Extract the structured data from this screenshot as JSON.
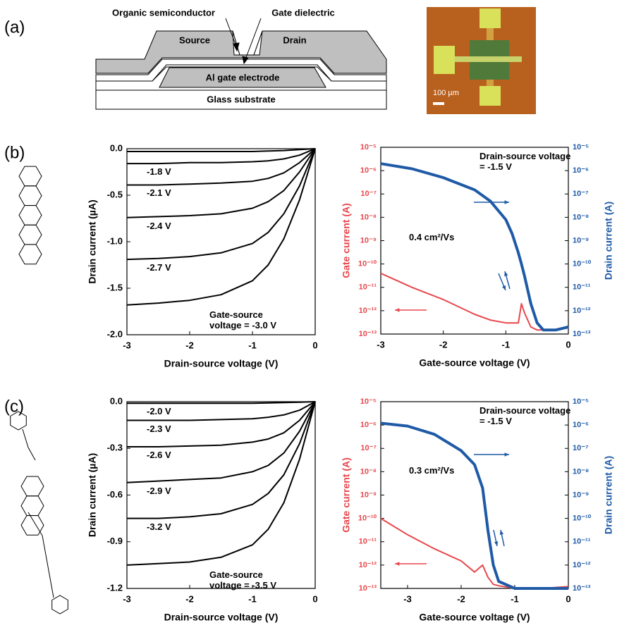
{
  "panel_labels": [
    "(a)",
    "(b)",
    "(c)"
  ],
  "diagram": {
    "organic_semiconductor": "Organic semiconductor",
    "gate_dielectric": "Gate dielectric",
    "source": "Source",
    "drain": "Drain",
    "gate_electrode": "Al gate electrode",
    "substrate": "Glass substrate",
    "scale_bar": "100 µm"
  },
  "chart_data": [
    {
      "type": "line",
      "x_label": "Drain-source voltage (V)",
      "y_label": "Drain current (µA)",
      "xlim": [
        -3,
        0
      ],
      "xticks": [
        -3,
        -2,
        -1,
        0
      ],
      "ylim": [
        -2,
        0
      ],
      "yticks": [
        {
          "value": 0,
          "label": "0.0"
        },
        -0.5,
        {
          "value": -1,
          "label": "-1.0"
        },
        -1.5,
        {
          "value": -2,
          "label": "-2.0"
        }
      ],
      "x": [
        -3,
        -2.5,
        -2,
        -1.5,
        -1,
        -0.75,
        -0.5,
        -0.25,
        0
      ],
      "series": [
        {
          "color": "#000000",
          "values": [
            -0.03,
            -0.03,
            -0.03,
            -0.03,
            -0.03,
            -0.025,
            -0.02,
            -0.01,
            0
          ]
        },
        {
          "name": "-1.8 V",
          "color": "#000000",
          "values": [
            -0.16,
            -0.16,
            -0.15,
            -0.15,
            -0.14,
            -0.13,
            -0.11,
            -0.07,
            0
          ]
        },
        {
          "name": "-2.1 V",
          "color": "#000000",
          "values": [
            -0.39,
            -0.39,
            -0.38,
            -0.37,
            -0.35,
            -0.32,
            -0.26,
            -0.15,
            0
          ]
        },
        {
          "name": "-2.4 V",
          "color": "#000000",
          "values": [
            -0.74,
            -0.73,
            -0.72,
            -0.7,
            -0.64,
            -0.57,
            -0.45,
            -0.25,
            0
          ]
        },
        {
          "name": "-2.7 V",
          "color": "#000000",
          "values": [
            -1.19,
            -1.18,
            -1.16,
            -1.12,
            -1.02,
            -0.9,
            -0.7,
            -0.4,
            0
          ]
        },
        {
          "name": "Gate-source voltage = -3.0 V",
          "color": "#000000",
          "values": [
            -1.68,
            -1.66,
            -1.63,
            -1.57,
            -1.42,
            -1.25,
            -0.97,
            -0.55,
            0
          ]
        }
      ]
    },
    {
      "type": "line",
      "y_scale": "log",
      "x_label": "Gate-source voltage (V)",
      "y_label": "Gate current (A)",
      "y2_label": "Drain current (A)",
      "annotations": [
        "Drain-source voltage = -1.5 V",
        "0.4 cm²/Vs"
      ],
      "xlim": [
        -3,
        0
      ],
      "xticks": [
        -3,
        -2,
        -1,
        0
      ],
      "ylim": [
        1e-13,
        1e-05
      ],
      "yticks": [
        {
          "value": 1e-05,
          "label": "10⁻⁵"
        },
        {
          "value": 1e-06,
          "label": "10⁻⁶"
        },
        {
          "value": 1e-07,
          "label": "10⁻⁷"
        },
        {
          "value": 1e-08,
          "label": "10⁻⁸"
        },
        {
          "value": 1e-09,
          "label": "10⁻⁹"
        },
        {
          "value": 1e-10,
          "label": "10⁻¹⁰"
        },
        {
          "value": 1e-11,
          "label": "10⁻¹¹"
        },
        {
          "value": 1e-12,
          "label": "10⁻¹²"
        },
        {
          "value": 1e-13,
          "label": "10⁻¹³"
        }
      ],
      "y2lim": [
        1e-13,
        1e-05
      ],
      "y2ticks": [
        {
          "value": 1e-05,
          "label": "10⁻⁵"
        },
        {
          "value": 1e-06,
          "label": "10⁻⁶"
        },
        {
          "value": 1e-07,
          "label": "10⁻⁷"
        },
        {
          "value": 1e-08,
          "label": "10⁻⁸"
        },
        {
          "value": 1e-09,
          "label": "10⁻⁹"
        },
        {
          "value": 1e-10,
          "label": "10⁻¹⁰"
        },
        {
          "value": 1e-11,
          "label": "10⁻¹¹"
        },
        {
          "value": 1e-12,
          "label": "10⁻¹²"
        },
        {
          "value": 1e-13,
          "label": "10⁻¹³"
        }
      ],
      "x": [
        -3,
        -2.5,
        -2,
        -1.5,
        -1.25,
        -1,
        -0.9,
        -0.8,
        -0.75,
        -0.7,
        -0.6,
        -0.5,
        -0.4,
        -0.2,
        0
      ],
      "series": [
        {
          "color": "#e8474c",
          "values": [
            4e-11,
            1e-11,
            3e-12,
            7e-13,
            4e-13,
            3e-13,
            3e-13,
            3e-13,
            2e-12,
            8e-13,
            2e-13,
            1.5e-13,
            1.5e-13,
            1.5e-13,
            2e-13
          ]
        },
        {
          "color": "#1f5aa6",
          "axis": "y2",
          "values": [
            2e-06,
            1.2e-06,
            5e-07,
            1.5e-07,
            5e-08,
            8e-09,
            2e-09,
            3e-10,
            1e-10,
            3e-11,
            2e-12,
            3e-13,
            1.5e-13,
            1.5e-13,
            2e-13
          ]
        }
      ]
    },
    {
      "type": "line",
      "x_label": "Drain-source voltage (V)",
      "y_label": "Drain current (µA)",
      "xlim": [
        -3,
        0
      ],
      "xticks": [
        -3,
        -2,
        -1,
        0
      ],
      "ylim": [
        -1.2,
        0
      ],
      "yticks": [
        {
          "value": 0,
          "label": "0.0"
        },
        -0.3,
        -0.6,
        -0.9,
        -1.2
      ],
      "x": [
        -3,
        -2.5,
        -2,
        -1.5,
        -1,
        -0.75,
        -0.5,
        -0.25,
        0
      ],
      "series": [
        {
          "name": "-2.0 V",
          "color": "#000000",
          "values": [
            -0.01,
            -0.01,
            -0.01,
            -0.01,
            -0.01,
            -0.008,
            -0.006,
            -0.003,
            0
          ]
        },
        {
          "name": "-2.3 V",
          "color": "#000000",
          "values": [
            -0.12,
            -0.12,
            -0.12,
            -0.115,
            -0.11,
            -0.1,
            -0.085,
            -0.055,
            0
          ]
        },
        {
          "name": "-2.6 V",
          "color": "#000000",
          "values": [
            -0.29,
            -0.29,
            -0.285,
            -0.28,
            -0.26,
            -0.24,
            -0.2,
            -0.12,
            0
          ]
        },
        {
          "name": "-2.9 V",
          "color": "#000000",
          "values": [
            -0.52,
            -0.51,
            -0.5,
            -0.49,
            -0.45,
            -0.41,
            -0.33,
            -0.19,
            0
          ]
        },
        {
          "name": "-3.2 V",
          "color": "#000000",
          "values": [
            -0.75,
            -0.75,
            -0.74,
            -0.72,
            -0.66,
            -0.59,
            -0.47,
            -0.27,
            0
          ]
        },
        {
          "name": "Gate-source voltage = -3.5 V",
          "color": "#000000",
          "values": [
            -1.05,
            -1.04,
            -1.03,
            -1.0,
            -0.92,
            -0.82,
            -0.65,
            -0.37,
            0
          ]
        }
      ]
    },
    {
      "type": "line",
      "y_scale": "log",
      "x_label": "Gate-source voltage (V)",
      "y_label": "Gate current (A)",
      "y2_label": "Drain current (A)",
      "annotations": [
        "Drain-source voltage = -1.5 V",
        "0.3 cm²/Vs"
      ],
      "xlim": [
        -3.5,
        0
      ],
      "xticks": [
        -3,
        -2,
        -1,
        0
      ],
      "ylim": [
        1e-13,
        1e-05
      ],
      "yticks": [
        {
          "value": 1e-05,
          "label": "10⁻⁵"
        },
        {
          "value": 1e-06,
          "label": "10⁻⁶"
        },
        {
          "value": 1e-07,
          "label": "10⁻⁷"
        },
        {
          "value": 1e-08,
          "label": "10⁻⁸"
        },
        {
          "value": 1e-09,
          "label": "10⁻⁹"
        },
        {
          "value": 1e-10,
          "label": "10⁻¹⁰"
        },
        {
          "value": 1e-11,
          "label": "10⁻¹¹"
        },
        {
          "value": 1e-12,
          "label": "10⁻¹²"
        },
        {
          "value": 1e-13,
          "label": "10⁻¹³"
        }
      ],
      "y2lim": [
        1e-13,
        1e-05
      ],
      "y2ticks": [
        {
          "value": 1e-05,
          "label": "10⁻⁵"
        },
        {
          "value": 1e-06,
          "label": "10⁻⁶"
        },
        {
          "value": 1e-07,
          "label": "10⁻⁷"
        },
        {
          "value": 1e-08,
          "label": "10⁻⁸"
        },
        {
          "value": 1e-09,
          "label": "10⁻⁹"
        },
        {
          "value": 1e-10,
          "label": "10⁻¹⁰"
        },
        {
          "value": 1e-11,
          "label": "10⁻¹¹"
        },
        {
          "value": 1e-12,
          "label": "10⁻¹²"
        },
        {
          "value": 1e-13,
          "label": "10⁻¹³"
        }
      ],
      "x": [
        -3.5,
        -3,
        -2.5,
        -2,
        -1.75,
        -1.6,
        -1.5,
        -1.4,
        -1.3,
        -1,
        -0.5,
        0
      ],
      "series": [
        {
          "color": "#e8474c",
          "values": [
            1e-10,
            2e-11,
            5e-12,
            1.5e-12,
            5e-13,
            1e-12,
            3e-13,
            1.5e-13,
            1.3e-13,
            1e-13,
            1e-13,
            1.2e-13
          ]
        },
        {
          "color": "#1f5aa6",
          "axis": "y2",
          "values": [
            1.2e-06,
            9e-07,
            4e-07,
            8e-08,
            2e-08,
            2e-09,
            3e-11,
            1e-12,
            2e-13,
            1e-13,
            1e-13,
            1e-13
          ]
        }
      ]
    }
  ]
}
